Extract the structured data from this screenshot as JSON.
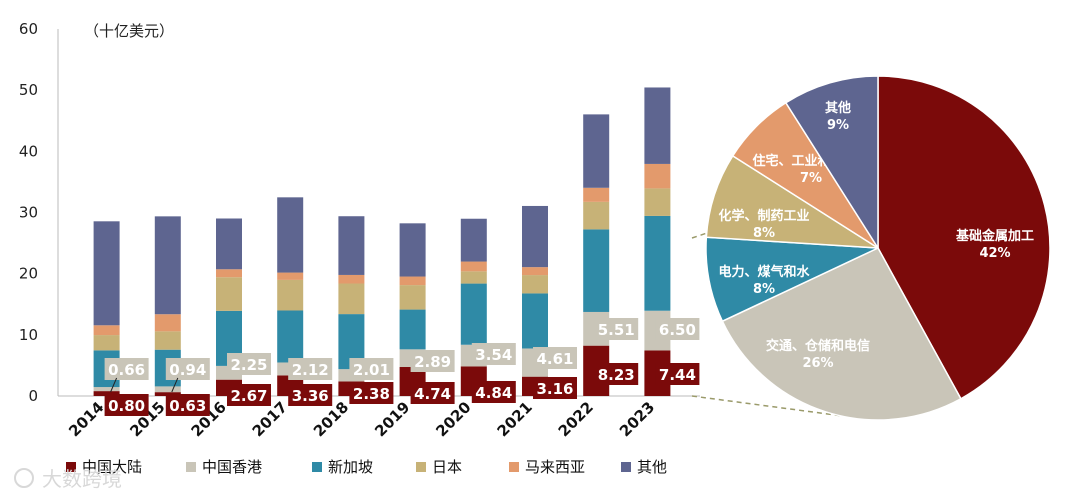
{
  "chart_data": {
    "type": "bar",
    "subtype": "stacked",
    "unit_label": "（十亿美元）",
    "ylim": [
      0,
      60
    ],
    "yticks": [
      "0",
      "10",
      "20",
      "30",
      "40",
      "50",
      "60"
    ],
    "categories": [
      "2014",
      "2015",
      "2016",
      "2017",
      "2018",
      "2019",
      "2020",
      "2021",
      "2022",
      "2023"
    ],
    "series": [
      {
        "name": "中国大陆",
        "color": "#7b0a0a",
        "values": [
          0.8,
          0.63,
          2.67,
          3.36,
          2.38,
          4.74,
          4.84,
          3.16,
          8.23,
          7.44
        ]
      },
      {
        "name": "中国香港",
        "color": "#c9c5b8",
        "values": [
          0.66,
          0.94,
          2.25,
          2.12,
          2.01,
          2.89,
          3.54,
          4.61,
          5.51,
          6.5
        ]
      },
      {
        "name": "新加坡",
        "color": "#2f8aa6",
        "values": [
          6.0,
          6.0,
          9.0,
          8.5,
          9.0,
          6.5,
          10.0,
          9.0,
          13.5,
          15.5
        ]
      },
      {
        "name": "日本",
        "color": "#c7b277",
        "values": [
          2.5,
          3.0,
          5.5,
          5.0,
          5.0,
          4.0,
          2.0,
          3.0,
          4.5,
          4.5
        ]
      },
      {
        "name": "马来西亚",
        "color": "#e39a6c",
        "values": [
          1.6,
          2.8,
          1.3,
          1.2,
          1.4,
          1.4,
          1.6,
          1.3,
          2.3,
          4.0
        ]
      },
      {
        "name": "其他",
        "color": "#5e6590",
        "values": [
          17.0,
          16.0,
          8.3,
          12.3,
          9.6,
          8.7,
          7.0,
          10.0,
          12.0,
          12.5
        ]
      }
    ],
    "data_labels": {
      "中国大陆": [
        "0.80",
        "0.63",
        "2.67",
        "3.36",
        "2.38",
        "4.74",
        "4.84",
        "3.16",
        "8.23",
        "7.44"
      ],
      "中国香港": [
        "0.66",
        "0.94",
        "2.25",
        "2.12",
        "2.01",
        "2.89",
        "3.54",
        "4.61",
        "5.51",
        "6.50"
      ]
    },
    "pie": {
      "type": "pie",
      "slices": [
        {
          "label": "基础金属加工",
          "value": 42,
          "pct": "42%",
          "color": "#7b0a0a",
          "text_color": "#ffffff"
        },
        {
          "label": "交通、仓储和电信",
          "value": 26,
          "pct": "26%",
          "color": "#c9c5b8",
          "text_color": "#ffffff"
        },
        {
          "label": "电力、煤气和水",
          "value": 8,
          "pct": "8%",
          "color": "#2f8aa6",
          "text_color": "#ffffff"
        },
        {
          "label": "化学、制药工业",
          "value": 8,
          "pct": "8%",
          "color": "#c7b277",
          "text_color": "#ffffff"
        },
        {
          "label": "住宅、工业和办公区",
          "value": 7,
          "pct": "7%",
          "color": "#e39a6c",
          "text_color": "#ffffff"
        },
        {
          "label": "其他",
          "value": 9,
          "pct": "9%",
          "color": "#5e6590",
          "text_color": "#ffffff"
        }
      ]
    },
    "legend": [
      "中国大陆",
      "中国香港",
      "新加坡",
      "日本",
      "马来西亚",
      "其他"
    ]
  },
  "watermark": "大数跨境"
}
